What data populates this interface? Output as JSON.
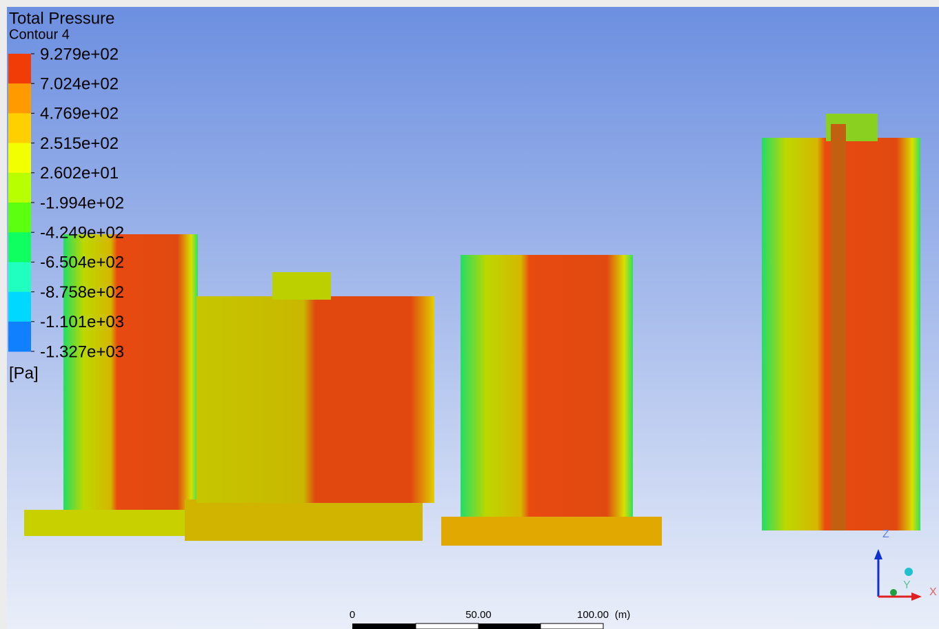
{
  "legend": {
    "title": "Total Pressure",
    "subtitle": "Contour 4",
    "labels": [
      "9.279e+02",
      "7.024e+02",
      "4.769e+02",
      "2.515e+02",
      "2.602e+01",
      "-1.994e+02",
      "-4.249e+02",
      "-6.504e+02",
      "-8.758e+02",
      "-1.101e+03",
      "-1.327e+03"
    ],
    "unit": "[Pa]"
  },
  "scale_bar": {
    "labels": [
      "0",
      "50.00",
      "100.00"
    ],
    "unit": "(m)"
  },
  "axes_triad": {
    "z": "Z",
    "y": "Y",
    "x": "X"
  }
}
